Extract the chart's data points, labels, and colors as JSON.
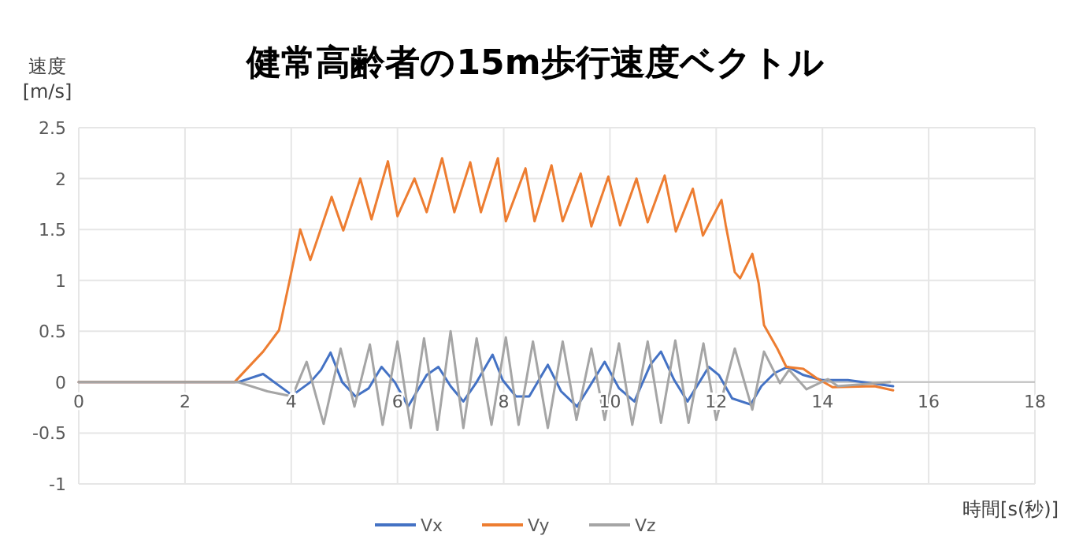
{
  "chart_data": {
    "type": "line",
    "title": "健常高齢者の15m歩行速度ベクトル",
    "ylabel": "速度 [m/s]",
    "xlabel": "時間[s(秒)]",
    "xlim": [
      0,
      18
    ],
    "xticks": [
      0,
      2,
      4,
      6,
      8,
      10,
      12,
      14,
      16,
      18
    ],
    "ylim": [
      -1,
      2.5
    ],
    "yticks": [
      -1,
      -0.5,
      0,
      0.5,
      1,
      1.5,
      2,
      2.5
    ],
    "grid": true,
    "legend": "bottom",
    "line_style": "solid",
    "marker": "none",
    "series": [
      {
        "name": "Vx",
        "color": "#4472c4",
        "x": [
          0,
          3,
          3.47,
          4.02,
          4.36,
          4.56,
          4.74,
          4.96,
          5.21,
          5.46,
          5.7,
          5.95,
          6.2,
          6.55,
          6.77,
          7.0,
          7.24,
          7.49,
          7.79,
          7.98,
          8.23,
          8.48,
          8.83,
          9.08,
          9.38,
          9.62,
          9.9,
          10.17,
          10.46,
          10.76,
          10.96,
          11.21,
          11.46,
          11.86,
          12.05,
          12.3,
          12.65,
          12.85,
          13.1,
          13.35,
          13.64,
          13.99,
          14.48,
          15.33
        ],
        "values": [
          0,
          0,
          0.08,
          -0.13,
          0,
          0.12,
          0.29,
          0,
          -0.14,
          -0.06,
          0.15,
          0,
          -0.24,
          0.07,
          0.15,
          -0.04,
          -0.19,
          0,
          0.27,
          0.02,
          -0.14,
          -0.14,
          0.17,
          -0.09,
          -0.24,
          -0.04,
          0.2,
          -0.06,
          -0.19,
          0.17,
          0.3,
          0.02,
          -0.19,
          0.15,
          0.07,
          -0.16,
          -0.22,
          -0.04,
          0.09,
          0.15,
          0.07,
          0.02,
          0.02,
          -0.04
        ]
      },
      {
        "name": "Vy",
        "color": "#ed7d31",
        "x": [
          0,
          2.93,
          3.47,
          3.77,
          3.97,
          4.17,
          4.36,
          4.76,
          4.98,
          5.3,
          5.51,
          5.82,
          6.0,
          6.32,
          6.55,
          6.84,
          7.07,
          7.37,
          7.57,
          7.89,
          8.04,
          8.41,
          8.58,
          8.9,
          9.11,
          9.45,
          9.65,
          9.97,
          10.19,
          10.5,
          10.71,
          11.03,
          11.24,
          11.56,
          11.75,
          12.1,
          12.18,
          12.35,
          12.45,
          12.68,
          12.8,
          12.9,
          13.15,
          13.32,
          13.64,
          13.89,
          14.19,
          14.98,
          15.33
        ],
        "values": [
          0,
          0,
          0.3,
          0.51,
          1.0,
          1.5,
          1.2,
          1.82,
          1.49,
          2.0,
          1.6,
          2.17,
          1.63,
          2.0,
          1.67,
          2.2,
          1.67,
          2.16,
          1.67,
          2.2,
          1.58,
          2.1,
          1.58,
          2.13,
          1.58,
          2.05,
          1.53,
          2.02,
          1.54,
          2.0,
          1.57,
          2.03,
          1.48,
          1.9,
          1.44,
          1.79,
          1.54,
          1.08,
          1.02,
          1.26,
          0.97,
          0.56,
          0.33,
          0.15,
          0.13,
          0.04,
          -0.05,
          -0.04,
          -0.08
        ]
      },
      {
        "name": "Vz",
        "color": "#a5a5a5",
        "x": [
          0,
          3,
          3.55,
          4.02,
          4.29,
          4.61,
          4.93,
          5.19,
          5.48,
          5.72,
          6.0,
          6.25,
          6.5,
          6.75,
          7.0,
          7.24,
          7.49,
          7.77,
          8.04,
          8.28,
          8.55,
          8.83,
          9.11,
          9.37,
          9.65,
          9.9,
          10.17,
          10.42,
          10.71,
          10.96,
          11.23,
          11.48,
          11.76,
          12.0,
          12.35,
          12.68,
          12.9,
          13.2,
          13.37,
          13.7,
          14.1,
          14.29,
          15.27
        ],
        "values": [
          0,
          0,
          -0.09,
          -0.14,
          0.2,
          -0.41,
          0.33,
          -0.24,
          0.37,
          -0.42,
          0.4,
          -0.45,
          0.43,
          -0.47,
          0.5,
          -0.45,
          0.43,
          -0.42,
          0.44,
          -0.42,
          0.4,
          -0.45,
          0.4,
          -0.37,
          0.33,
          -0.37,
          0.38,
          -0.42,
          0.4,
          -0.4,
          0.41,
          -0.4,
          0.38,
          -0.37,
          0.33,
          -0.27,
          0.3,
          -0.01,
          0.12,
          -0.07,
          0.03,
          -0.04,
          0
        ]
      }
    ]
  }
}
